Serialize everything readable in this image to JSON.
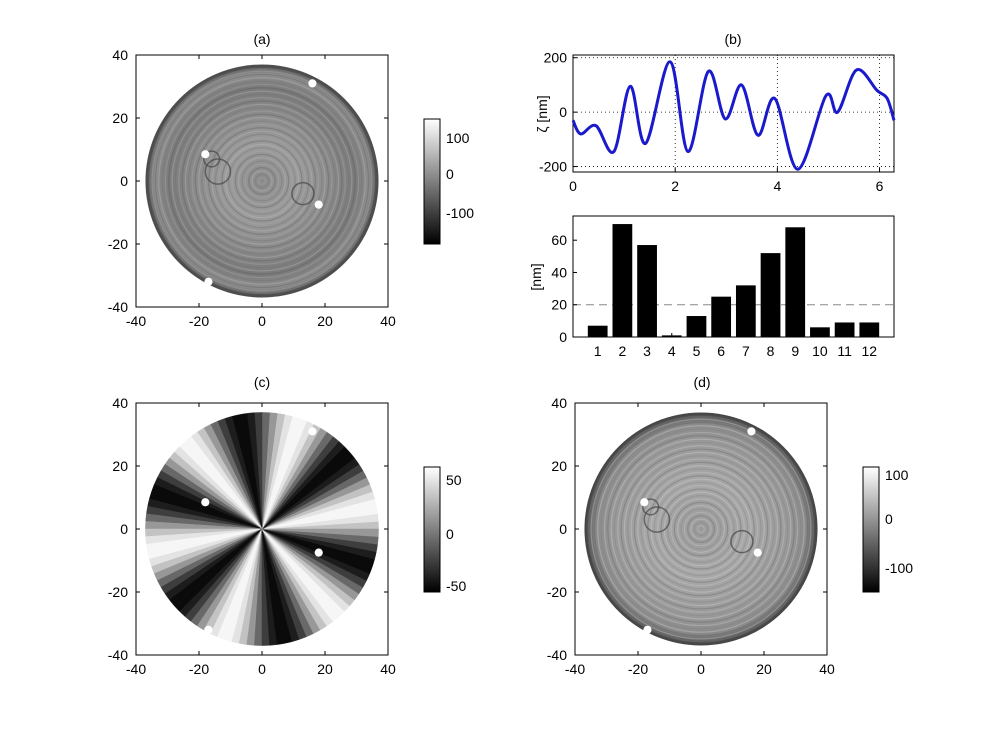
{
  "panels": {
    "a": {
      "label": "(a)",
      "colorbar_ticks": [
        "100",
        "0",
        "-100"
      ]
    },
    "b": {
      "label": "(b)"
    },
    "c": {
      "label": "(c)",
      "colorbar_ticks": [
        "50",
        "0",
        "-50"
      ]
    },
    "d": {
      "label": "(d)",
      "colorbar_ticks": [
        "100",
        "0",
        "-100"
      ]
    }
  },
  "map_ticks": {
    "x": [
      "-40",
      "-20",
      "0",
      "20",
      "40"
    ],
    "y": [
      "40",
      "20",
      "0",
      "-20",
      "-40"
    ]
  },
  "chart_data": [
    {
      "panel": "(a)",
      "type": "heatmap",
      "xlim": [
        -40,
        40
      ],
      "ylim": [
        -40,
        40
      ],
      "xticks": [
        -40,
        -20,
        0,
        20,
        40
      ],
      "yticks": [
        -40,
        -20,
        0,
        20,
        40
      ],
      "colorbar": {
        "range": [
          -150,
          140
        ],
        "ticks": [
          100,
          0,
          -100
        ],
        "colormap": "gray"
      },
      "content": "circular surface height map of radius ~37 with concentric ring texture"
    },
    {
      "panel": "(b)",
      "type": "line",
      "ylabel": "ζ [nm]",
      "xlim": [
        0,
        6.283
      ],
      "ylim": [
        -220,
        210
      ],
      "xticks": [
        0,
        2,
        4,
        6
      ],
      "yticks": [
        -200,
        0,
        200
      ],
      "grid": true,
      "line_color": "#1a1acc",
      "x": [
        0,
        0.15,
        0.45,
        0.8,
        1.12,
        1.42,
        1.9,
        2.25,
        2.65,
        2.98,
        3.3,
        3.62,
        3.95,
        4.4,
        4.95,
        5.18,
        5.55,
        5.95,
        6.15,
        6.283
      ],
      "y": [
        -30,
        -80,
        -50,
        -145,
        95,
        -115,
        185,
        -145,
        150,
        -25,
        100,
        -85,
        50,
        -210,
        60,
        0,
        155,
        80,
        50,
        -30
      ]
    },
    {
      "panel": "(b) lower",
      "type": "bar",
      "ylabel": "[nm]",
      "categories": [
        "1",
        "2",
        "3",
        "4",
        "5",
        "6",
        "7",
        "8",
        "9",
        "10",
        "11",
        "12"
      ],
      "values": [
        7,
        70,
        57,
        1,
        13,
        25,
        32,
        52,
        68,
        6,
        9,
        9
      ],
      "ylim": [
        0,
        75
      ],
      "yticks": [
        0,
        20,
        40,
        60
      ],
      "reference_line": 20,
      "bar_color": "#000000"
    },
    {
      "panel": "(c)",
      "type": "heatmap",
      "xlim": [
        -40,
        40
      ],
      "ylim": [
        -40,
        40
      ],
      "xticks": [
        -40,
        -20,
        0,
        20,
        40
      ],
      "yticks": [
        -40,
        -20,
        0,
        20,
        40
      ],
      "colorbar": {
        "range": [
          -60,
          60
        ],
        "ticks": [
          50,
          0,
          -50
        ],
        "colormap": "gray"
      },
      "content": "angular sector pattern on circular disk"
    },
    {
      "panel": "(d)",
      "type": "heatmap",
      "xlim": [
        -40,
        40
      ],
      "ylim": [
        -40,
        40
      ],
      "xticks": [
        -40,
        -20,
        0,
        20,
        40
      ],
      "yticks": [
        -40,
        -20,
        0,
        20,
        40
      ],
      "colorbar": {
        "range": [
          -150,
          110
        ],
        "ticks": [
          100,
          0,
          -100
        ],
        "colormap": "gray"
      },
      "content": "residual circular surface height map with concentric ring texture"
    }
  ]
}
